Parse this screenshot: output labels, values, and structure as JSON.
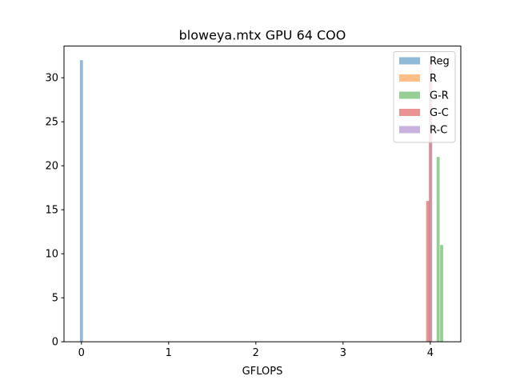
{
  "chart_data": {
    "type": "bar",
    "title": "bloweya.mtx GPU 64 COO",
    "xlabel": "GFLOPS",
    "ylabel": "",
    "xlim": [
      -0.2,
      4.35
    ],
    "ylim": [
      0,
      33.6
    ],
    "x_ticks": [
      0,
      1,
      2,
      3,
      4
    ],
    "y_ticks": [
      0,
      5,
      10,
      15,
      20,
      25,
      30
    ],
    "grid": false,
    "legend_position": "top-right",
    "bin_width": 0.035,
    "series": [
      {
        "name": "Reg",
        "color": "#1f77b4",
        "bins": [
          {
            "x": 0.0,
            "count": 32
          }
        ]
      },
      {
        "name": "R",
        "color": "#ff7f0e",
        "bins": [
          {
            "x": 4.0,
            "count": 32
          }
        ]
      },
      {
        "name": "G-R",
        "color": "#2ca02c",
        "bins": [
          {
            "x": 4.09,
            "count": 21
          },
          {
            "x": 4.13,
            "count": 11
          }
        ]
      },
      {
        "name": "G-C",
        "color": "#d62728",
        "bins": [
          {
            "x": 3.97,
            "count": 16
          }
        ]
      },
      {
        "name": "R-C",
        "color": "#9467bd",
        "bins": [
          {
            "x": 4.005,
            "count": 32
          }
        ]
      }
    ],
    "bar_opacity": 0.5
  }
}
